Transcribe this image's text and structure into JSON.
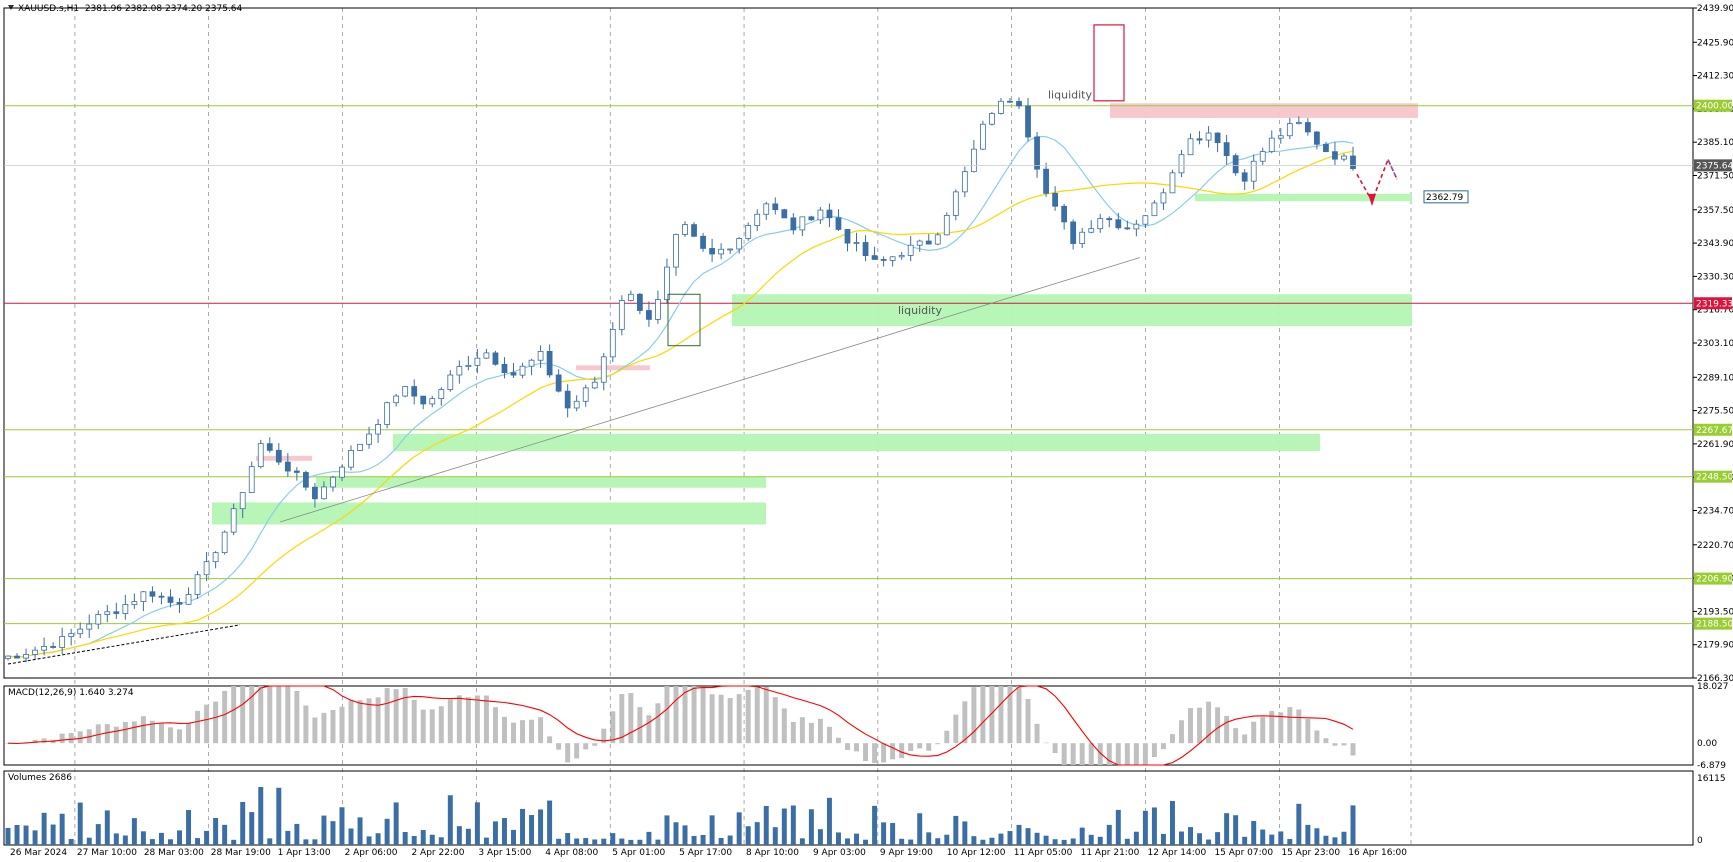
{
  "chart_data": [
    {
      "type": "candlestick",
      "symbol": "XAUUSD.s",
      "timeframe": "H1",
      "ohlc_label": "2381.96 2382.08 2374.20 2375.64",
      "ohlc": {
        "open": 2381.96,
        "high": 2382.08,
        "low": 2374.2,
        "close": 2375.64
      },
      "current_price": 2375.64,
      "ylim": [
        2166.3,
        2439.9
      ],
      "y_ticks": [
        2439.9,
        2425.9,
        2412.3,
        2398.7,
        2385.1,
        2371.5,
        2357.5,
        2343.9,
        2330.3,
        2316.7,
        2303.1,
        2289.1,
        2275.5,
        2261.9,
        2248.3,
        2234.7,
        2220.7,
        2207.1,
        2193.5,
        2179.9,
        2166.3
      ],
      "x_ticks": [
        "26 Mar 2024",
        "27 Mar 10:00",
        "28 Mar 03:00",
        "28 Mar 19:00",
        "1 Apr 13:00",
        "2 Apr 06:00",
        "2 Apr 22:00",
        "3 Apr 15:00",
        "4 Apr 08:00",
        "5 Apr 01:00",
        "5 Apr 17:00",
        "8 Apr 10:00",
        "9 Apr 03:00",
        "9 Apr 19:00",
        "10 Apr 12:00",
        "11 Apr 05:00",
        "11 Apr 21:00",
        "12 Apr 14:00",
        "15 Apr 07:00",
        "15 Apr 23:00",
        "16 Apr 16:00"
      ],
      "price_path": [
        2175,
        2178,
        2182,
        2190,
        2195,
        2202,
        2196,
        2210,
        2232,
        2262,
        2252,
        2240,
        2255,
        2268,
        2285,
        2278,
        2292,
        2300,
        2290,
        2298,
        2276,
        2288,
        2325,
        2312,
        2352,
        2338,
        2345,
        2361,
        2350,
        2358,
        2345,
        2335,
        2341,
        2345,
        2368,
        2397,
        2405,
        2365,
        2345,
        2355,
        2350,
        2360,
        2385,
        2390,
        2369,
        2385,
        2393,
        2382,
        2376
      ],
      "horizontal_levels": [
        {
          "price": 2400.0,
          "label": "2400.00",
          "color": "#9acd32"
        },
        {
          "price": 2319.33,
          "label": "2319.33",
          "color": "#dc143c"
        },
        {
          "price": 2267.67,
          "label": "2267.67",
          "color": "#9acd32"
        },
        {
          "price": 2248.5,
          "label": "2248.50",
          "color": "#9acd32"
        },
        {
          "price": 2206.9,
          "label": "2206.90",
          "color": "#9acd32"
        },
        {
          "price": 2188.5,
          "label": "2188.50",
          "color": "#9acd32"
        }
      ],
      "marker_label": "2362.79",
      "annotations": [
        "liquidity",
        "liquidity"
      ],
      "moving_averages": [
        {
          "color": "#87ceeb"
        },
        {
          "color": "#ffd700"
        }
      ],
      "colors": {
        "candle": "#3a6ea5",
        "green_zone": "#b3f5b3",
        "red_zone": "#f7c6cc",
        "level": "#9acd32"
      }
    },
    {
      "type": "histogram",
      "label": "MACD(12,26,9) 1.640 3.274",
      "ylim": [
        -6.879,
        18.027
      ],
      "y_ticks": [
        18.027,
        0.0,
        -6.879
      ],
      "y_tick_labels": [
        "18.027",
        "0.00",
        "-6.879"
      ],
      "colors": {
        "histogram": "#c0c0c0",
        "signal": "#ff0000"
      }
    },
    {
      "type": "bar",
      "label": "Volumes 2686",
      "ylim": [
        0,
        16115
      ],
      "y_tick_labels": [
        "16115",
        "0"
      ],
      "colors": {
        "bars": "#3a6ea5"
      }
    }
  ]
}
